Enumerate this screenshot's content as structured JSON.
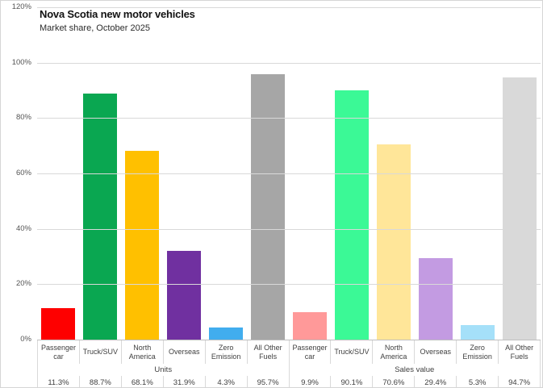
{
  "header": {
    "title": "Nova Scotia new motor vehicles",
    "subtitle": "Market share, October 2025"
  },
  "chart_data": {
    "type": "bar",
    "title": "Nova Scotia new motor vehicles",
    "subtitle": "Market share, October 2025",
    "ylabel": "",
    "xlabel": "",
    "ylim": [
      0,
      120
    ],
    "yticks": [
      0,
      20,
      40,
      60,
      80,
      100,
      120
    ],
    "ytick_labels": [
      "0%",
      "20%",
      "40%",
      "60%",
      "80%",
      "100%",
      "120%"
    ],
    "grid": true,
    "legend": "none",
    "groups": [
      {
        "label": "Units",
        "categories": [
          "Passenger car",
          "Truck/SUV",
          "North America",
          "Overseas",
          "Zero Emission",
          "All Other Fuels"
        ],
        "values": [
          11.3,
          88.7,
          68.1,
          31.9,
          4.3,
          95.7
        ],
        "value_labels": [
          "11.3%",
          "88.7%",
          "68.1%",
          "31.9%",
          "4.3%",
          "95.7%"
        ],
        "bar_colors": [
          "#fe0000",
          "#0aa751",
          "#ffc000",
          "#7030a0",
          "#41adee",
          "#a6a6a6"
        ]
      },
      {
        "label": "Sales value",
        "categories": [
          "Passenger car",
          "Truck/SUV",
          "North America",
          "Overseas",
          "Zero Emission",
          "All Other Fuels"
        ],
        "values": [
          9.9,
          90.1,
          70.6,
          29.4,
          5.3,
          94.7
        ],
        "value_labels": [
          "9.9%",
          "90.1%",
          "70.6%",
          "29.4%",
          "5.3%",
          "94.7%"
        ],
        "bar_colors": [
          "#ff9999",
          "#3bf996",
          "#ffe699",
          "#c39be2",
          "#a5e0f9",
          "#d9d9d9"
        ]
      }
    ]
  },
  "colors": {
    "gridline": "#d9d9d9",
    "axis_line": "#bfbfbf",
    "frame_border": "#d6d6d6",
    "background": "#ffffff"
  }
}
